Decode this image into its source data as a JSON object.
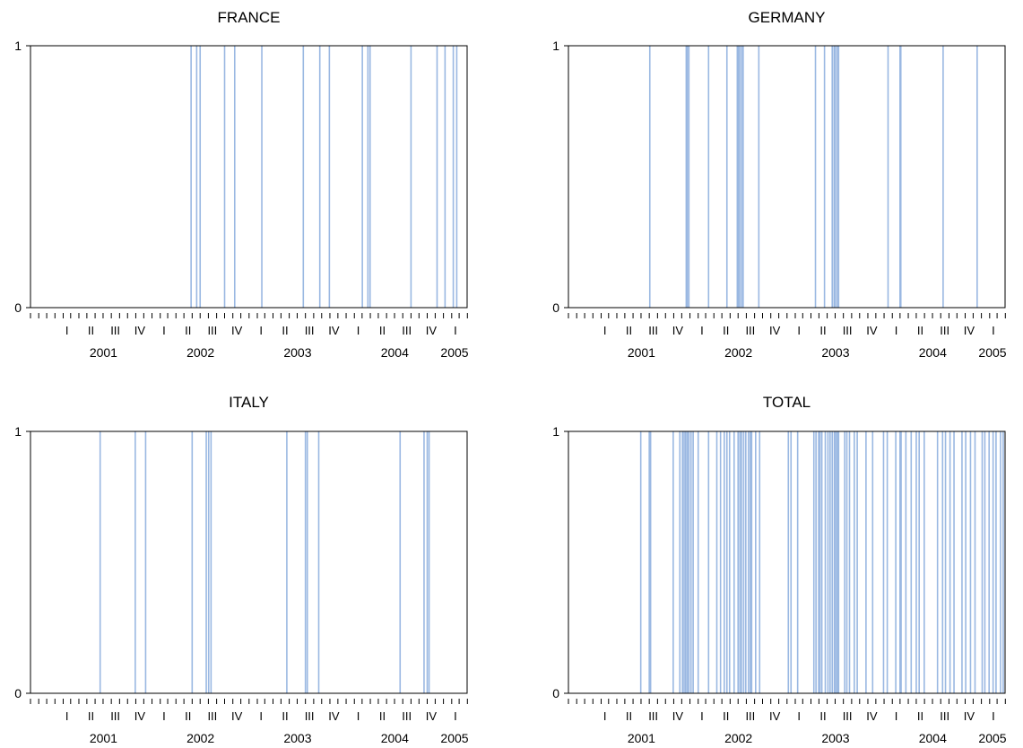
{
  "chart_data": [
    {
      "type": "bar",
      "title": "FRANCE",
      "series_color": "#9ab8e2",
      "xlabel": "",
      "ylabel": "",
      "ylim": [
        0,
        1
      ],
      "yticks": [
        "0",
        "1"
      ],
      "xlim": [
        "2000-10-01",
        "2005-03-31"
      ],
      "quarter_labels": [
        "I",
        "II",
        "III",
        "IV",
        "I",
        "II",
        "III",
        "IV",
        "I",
        "II",
        "III",
        "IV",
        "I",
        "II",
        "III",
        "IV",
        "I"
      ],
      "year_labels": [
        "2001",
        "2002",
        "2003",
        "2004",
        "2005"
      ],
      "events": [
        "2002-05-28",
        "2002-06-18",
        "2002-07-01",
        "2002-10-01",
        "2002-11-08",
        "2003-02-18",
        "2003-07-24",
        "2003-09-24",
        "2003-10-30",
        "2004-03-02",
        "2004-03-23",
        "2004-03-31",
        "2004-09-01",
        "2004-12-08",
        "2005-01-07",
        "2005-02-07",
        "2005-02-20"
      ]
    },
    {
      "type": "bar",
      "title": "GERMANY",
      "series_color": "#9ab8e2",
      "xlabel": "",
      "ylabel": "",
      "ylim": [
        0,
        1
      ],
      "yticks": [
        "0",
        "1"
      ],
      "xlim": [
        "2000-10-01",
        "2005-03-31"
      ],
      "quarter_labels": [
        "I",
        "II",
        "III",
        "IV",
        "I",
        "II",
        "III",
        "IV",
        "I",
        "II",
        "III",
        "IV",
        "I",
        "II",
        "III",
        "IV",
        "I"
      ],
      "year_labels": [
        "2001",
        "2002",
        "2003",
        "2004",
        "2005"
      ],
      "events": [
        "2001-08-03",
        "2001-12-18",
        "2001-12-22",
        "2001-12-28",
        "2002-03-12",
        "2002-05-20",
        "2002-06-28",
        "2002-07-02",
        "2002-07-07",
        "2002-07-14",
        "2002-07-20",
        "2002-09-17",
        "2003-04-18",
        "2003-05-22",
        "2003-06-20",
        "2003-06-27",
        "2003-07-01",
        "2003-07-08",
        "2003-07-14",
        "2004-01-16",
        "2004-03-01",
        "2004-03-04",
        "2004-08-10",
        "2004-12-16"
      ]
    },
    {
      "type": "bar",
      "title": "ITALY",
      "series_color": "#9ab8e2",
      "xlabel": "",
      "ylabel": "",
      "ylim": [
        0,
        1
      ],
      "yticks": [
        "0",
        "1"
      ],
      "xlim": [
        "2000-10-01",
        "2005-03-31"
      ],
      "quarter_labels": [
        "I",
        "II",
        "III",
        "IV",
        "I",
        "II",
        "III",
        "IV",
        "I",
        "II",
        "III",
        "IV",
        "I",
        "II",
        "III",
        "IV",
        "I"
      ],
      "year_labels": [
        "2001",
        "2002",
        "2003",
        "2004",
        "2005"
      ],
      "events": [
        "2001-06-20",
        "2001-10-30",
        "2001-12-08",
        "2002-06-01",
        "2002-07-24",
        "2002-08-02",
        "2002-08-11",
        "2003-05-23",
        "2003-08-01",
        "2003-08-08",
        "2003-09-20",
        "2004-07-22",
        "2004-10-20",
        "2004-11-01",
        "2004-11-08"
      ]
    },
    {
      "type": "bar",
      "title": "TOTAL",
      "series_color": "#9ab8e2",
      "xlabel": "",
      "ylabel": "",
      "ylim": [
        0,
        1
      ],
      "yticks": [
        "0",
        "1"
      ],
      "xlim": [
        "2000-10-01",
        "2005-03-31"
      ],
      "quarter_labels": [
        "I",
        "II",
        "III",
        "IV",
        "I",
        "II",
        "III",
        "IV",
        "I",
        "II",
        "III",
        "IV",
        "I",
        "II",
        "III",
        "IV",
        "I"
      ],
      "year_labels": [
        "2001",
        "2002",
        "2003",
        "2004",
        "2005"
      ],
      "events": [
        "2001-06-30",
        "2001-08-01",
        "2001-08-06",
        "2001-10-30",
        "2001-11-24",
        "2001-12-04",
        "2001-12-10",
        "2001-12-16",
        "2001-12-22",
        "2001-12-28",
        "2002-01-05",
        "2002-01-13",
        "2002-02-01",
        "2002-03-12",
        "2002-04-12",
        "2002-04-26",
        "2002-05-10",
        "2002-05-20",
        "2002-05-30",
        "2002-06-16",
        "2002-07-01",
        "2002-07-08",
        "2002-07-14",
        "2002-07-22",
        "2002-07-30",
        "2002-08-09",
        "2002-08-16",
        "2002-08-21",
        "2002-09-05",
        "2002-09-20",
        "2003-01-06",
        "2003-01-16",
        "2003-02-10",
        "2003-04-12",
        "2003-04-20",
        "2003-04-30",
        "2003-05-05",
        "2003-05-12",
        "2003-05-25",
        "2003-06-04",
        "2003-06-12",
        "2003-06-20",
        "2003-06-28",
        "2003-07-03",
        "2003-07-09",
        "2003-07-14",
        "2003-08-06",
        "2003-08-14",
        "2003-08-24",
        "2003-09-11",
        "2003-09-22",
        "2003-10-25",
        "2003-11-19",
        "2003-12-30",
        "2004-01-13",
        "2004-02-14",
        "2004-03-01",
        "2004-03-05",
        "2004-03-23",
        "2004-04-12",
        "2004-05-01",
        "2004-05-12",
        "2004-05-31",
        "2004-07-20",
        "2004-08-08",
        "2004-08-19",
        "2004-09-05",
        "2004-09-20",
        "2004-10-20",
        "2004-11-03",
        "2004-11-21",
        "2004-12-08",
        "2005-01-04",
        "2005-01-14",
        "2005-01-30",
        "2005-02-14",
        "2005-02-25",
        "2005-03-14",
        "2005-03-24"
      ]
    }
  ]
}
